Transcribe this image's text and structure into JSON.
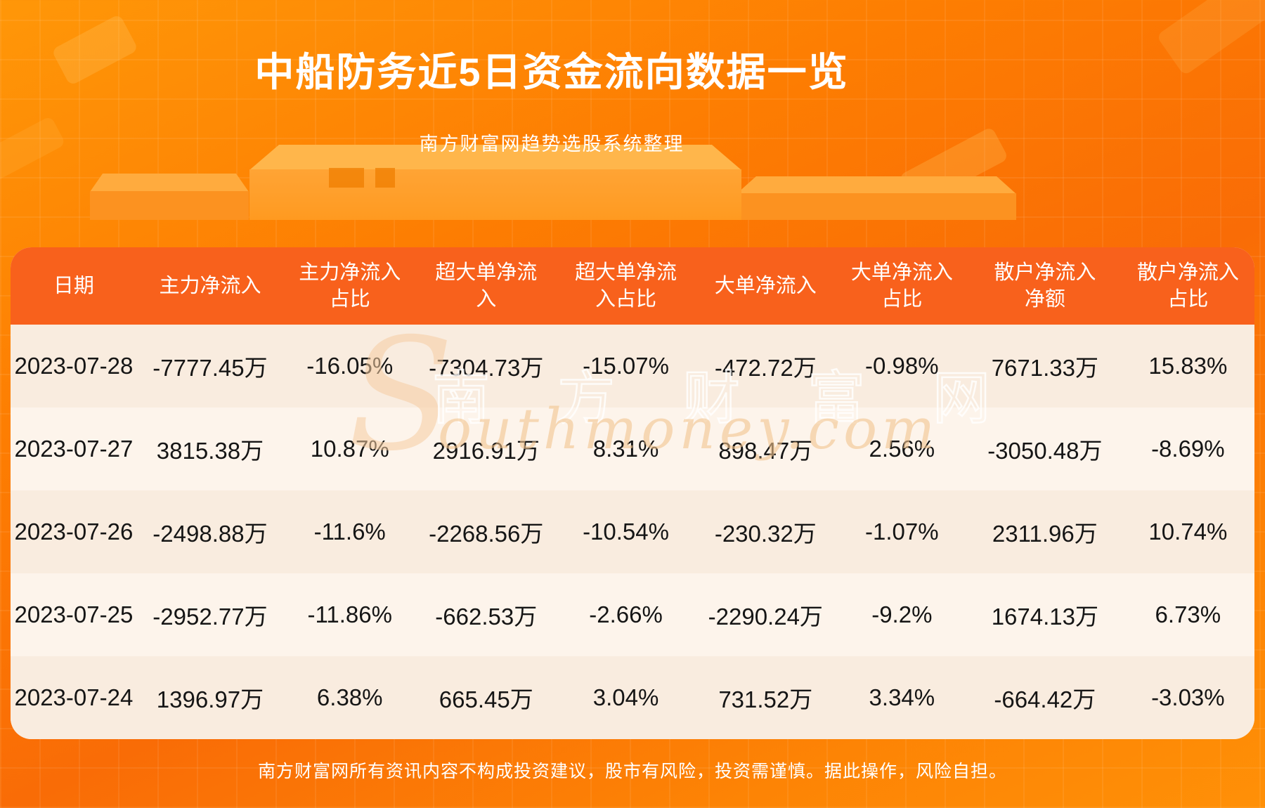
{
  "header": {
    "title": "中船防务近5日资金流向数据一览",
    "subtitle": "南方财富网趋势选股系统整理"
  },
  "watermark": {
    "initial": "S",
    "cjk": "南方财富网",
    "latin": "outhmoney.com"
  },
  "footer": {
    "disclaimer": "南方财富网所有资讯内容不构成投资建议，股市有风险，投资需谨慎。据此操作，风险自担。"
  },
  "colors": {
    "page_orange_top": "#ff9708",
    "page_orange_mid": "#f96c06",
    "table_header_orange": "#f8611c",
    "row_odd_cream": "#f9ecdf",
    "row_even_cream": "#fdf4eb",
    "title_text": "#ffffff",
    "cell_text": "#151515",
    "podium_light": "#ffb64b"
  },
  "chart_data": {
    "type": "table",
    "title": "中船防务近5日资金流向数据一览",
    "subtitle": "南方财富网趋势选股系统整理",
    "columns": [
      "日期",
      "主力净流入",
      "主力净流入占比",
      "超大单净流入",
      "超大单净流入占比",
      "大单净流入",
      "大单净流入占比",
      "散户净流入净额",
      "散户净流入占比"
    ],
    "column_display": [
      "日期",
      "主力净流入",
      "主力净流入\n占比",
      "超大单净流\n入",
      "超大单净流\n入占比",
      "大单净流入",
      "大单净流入\n占比",
      "散户净流入\n净额",
      "散户净流入\n占比"
    ],
    "rows": [
      [
        "2023-07-28",
        "-7777.45万",
        "-16.05%",
        "-7304.73万",
        "-15.07%",
        "-472.72万",
        "-0.98%",
        "7671.33万",
        "15.83%"
      ],
      [
        "2023-07-27",
        "3815.38万",
        "10.87%",
        "2916.91万",
        "8.31%",
        "898.47万",
        "2.56%",
        "-3050.48万",
        "-8.69%"
      ],
      [
        "2023-07-26",
        "-2498.88万",
        "-11.6%",
        "-2268.56万",
        "-10.54%",
        "-230.32万",
        "-1.07%",
        "2311.96万",
        "10.74%"
      ],
      [
        "2023-07-25",
        "-2952.77万",
        "-11.86%",
        "-662.53万",
        "-2.66%",
        "-2290.24万",
        "-9.2%",
        "1674.13万",
        "6.73%"
      ],
      [
        "2023-07-24",
        "1396.97万",
        "6.38%",
        "665.45万",
        "3.04%",
        "731.52万",
        "3.34%",
        "-664.42万",
        "-3.03%"
      ]
    ]
  }
}
